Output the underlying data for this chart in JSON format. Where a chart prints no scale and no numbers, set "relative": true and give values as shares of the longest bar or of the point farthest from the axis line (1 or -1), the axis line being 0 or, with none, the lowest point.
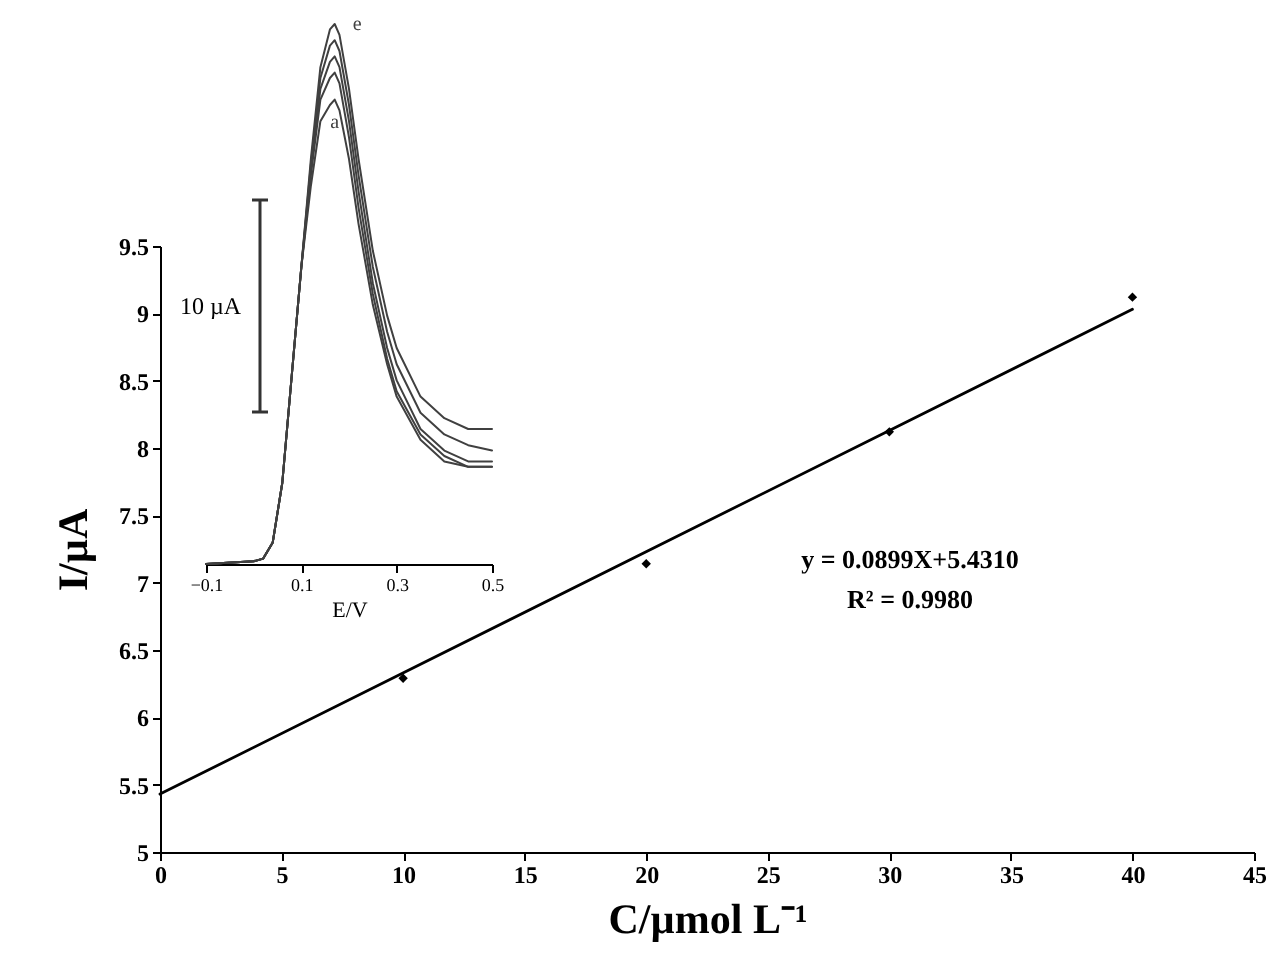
{
  "chart_data": [
    {
      "type": "scatter",
      "xlabel": "C/µmol L⁻¹",
      "ylabel": "I/µA",
      "grid": false,
      "xlim": [
        0,
        45
      ],
      "xticks": [
        0,
        5,
        10,
        15,
        20,
        25,
        30,
        35,
        40,
        45
      ],
      "ylim": [
        5,
        9.5
      ],
      "yticks": [
        5,
        5.5,
        6,
        6.5,
        7,
        7.5,
        8,
        8.5,
        9,
        9.5
      ],
      "series": [
        {
          "marker": "diamond",
          "color": "#000000",
          "x": [
            10,
            20,
            30,
            40
          ],
          "values": [
            6.29,
            7.14,
            8.12,
            9.12
          ]
        },
        {
          "type": "line",
          "marker": "none",
          "color": "#000000",
          "x": [
            0,
            40
          ],
          "values": [
            5.43,
            9.03
          ]
        }
      ],
      "annotations": [
        "y = 0.0899X+5.4310",
        "R² = 0.9980"
      ]
    },
    {
      "type": "line",
      "xlabel": "E/V",
      "relative": true,
      "grid": false,
      "marker": "none",
      "xlim": [
        -0.1,
        0.5
      ],
      "xticks": [
        -0.1,
        0.1,
        0.3,
        0.5
      ],
      "x": [
        -0.1,
        0,
        0.02,
        0.04,
        0.06,
        0.08,
        0.1,
        0.12,
        0.14,
        0.16,
        0.17,
        0.18,
        0.2,
        0.22,
        0.25,
        0.28,
        0.3,
        0.35,
        0.4,
        0.45,
        0.5
      ],
      "series": [
        {
          "name": "a",
          "color": "#404040",
          "values": [
            0,
            0.005,
            0.01,
            0.04,
            0.15,
            0.35,
            0.55,
            0.7,
            0.82,
            0.85,
            0.86,
            0.84,
            0.75,
            0.63,
            0.48,
            0.37,
            0.31,
            0.23,
            0.19,
            0.18,
            0.18
          ]
        },
        {
          "color": "#404040",
          "values": [
            0,
            0.005,
            0.01,
            0.04,
            0.15,
            0.35,
            0.55,
            0.72,
            0.86,
            0.9,
            0.91,
            0.89,
            0.79,
            0.66,
            0.5,
            0.38,
            0.32,
            0.24,
            0.2,
            0.18,
            0.18
          ]
        },
        {
          "color": "#404040",
          "values": [
            0,
            0.005,
            0.01,
            0.04,
            0.15,
            0.35,
            0.55,
            0.73,
            0.88,
            0.93,
            0.94,
            0.92,
            0.82,
            0.69,
            0.52,
            0.4,
            0.34,
            0.25,
            0.21,
            0.19,
            0.19
          ]
        },
        {
          "color": "#404040",
          "values": [
            0,
            0.005,
            0.01,
            0.04,
            0.15,
            0.35,
            0.55,
            0.74,
            0.9,
            0.96,
            0.97,
            0.95,
            0.85,
            0.72,
            0.55,
            0.43,
            0.37,
            0.28,
            0.24,
            0.22,
            0.21
          ]
        },
        {
          "name": "e",
          "color": "#404040",
          "values": [
            0,
            0.005,
            0.01,
            0.04,
            0.15,
            0.35,
            0.55,
            0.75,
            0.92,
            0.99,
            1.0,
            0.98,
            0.88,
            0.75,
            0.58,
            0.46,
            0.4,
            0.31,
            0.27,
            0.25,
            0.25
          ]
        }
      ],
      "annotations": [
        "10 µA"
      ]
    }
  ]
}
